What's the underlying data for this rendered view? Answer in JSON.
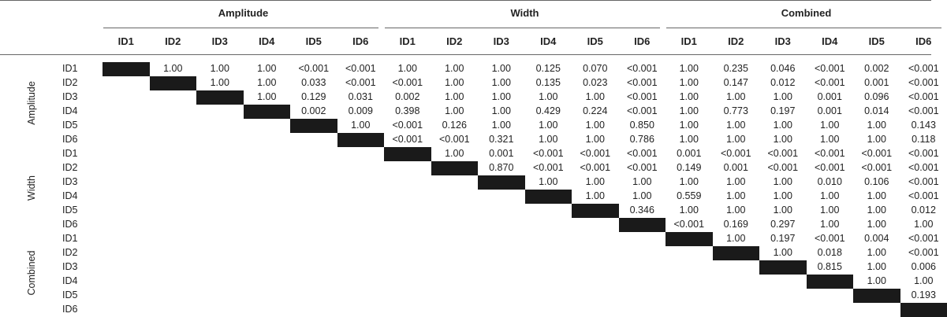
{
  "table": {
    "groups": [
      "Amplitude",
      "Width",
      "Combined"
    ],
    "ids": [
      "ID1",
      "ID2",
      "ID3",
      "ID4",
      "ID5",
      "ID6"
    ],
    "rows": [
      [
        "",
        "1.00",
        "1.00",
        "1.00",
        "<0.001",
        "<0.001",
        "1.00",
        "1.00",
        "1.00",
        "0.125",
        "0.070",
        "<0.001",
        "1.00",
        "0.235",
        "0.046",
        "<0.001",
        "0.002",
        "<0.001"
      ],
      [
        "",
        "",
        "1.00",
        "1.00",
        "0.033",
        "<0.001",
        "<0.001",
        "1.00",
        "1.00",
        "0.135",
        "0.023",
        "<0.001",
        "1.00",
        "0.147",
        "0.012",
        "<0.001",
        "0.001",
        "<0.001"
      ],
      [
        "",
        "",
        "",
        "1.00",
        "0.129",
        "0.031",
        "0.002",
        "1.00",
        "1.00",
        "1.00",
        "1.00",
        "<0.001",
        "1.00",
        "1.00",
        "1.00",
        "0.001",
        "0.096",
        "<0.001"
      ],
      [
        "",
        "",
        "",
        "",
        "0.002",
        "0.009",
        "0.398",
        "1.00",
        "1.00",
        "0.429",
        "0.224",
        "<0.001",
        "1.00",
        "0.773",
        "0.197",
        "0.001",
        "0.014",
        "<0.001"
      ],
      [
        "",
        "",
        "",
        "",
        "",
        "1.00",
        "<0.001",
        "0.126",
        "1.00",
        "1.00",
        "1.00",
        "0.850",
        "1.00",
        "1.00",
        "1.00",
        "1.00",
        "1.00",
        "0.143"
      ],
      [
        "",
        "",
        "",
        "",
        "",
        "",
        "<0.001",
        "<0.001",
        "0.321",
        "1.00",
        "1.00",
        "0.786",
        "1.00",
        "1.00",
        "1.00",
        "1.00",
        "1.00",
        "0.118"
      ],
      [
        "",
        "",
        "",
        "",
        "",
        "",
        "",
        "1.00",
        "0.001",
        "<0.001",
        "<0.001",
        "<0.001",
        "0.001",
        "<0.001",
        "<0.001",
        "<0.001",
        "<0.001",
        "<0.001"
      ],
      [
        "",
        "",
        "",
        "",
        "",
        "",
        "",
        "",
        "0.870",
        "<0.001",
        "<0.001",
        "<0.001",
        "0.149",
        "0.001",
        "<0.001",
        "<0.001",
        "<0.001",
        "<0.001"
      ],
      [
        "",
        "",
        "",
        "",
        "",
        "",
        "",
        "",
        "",
        "1.00",
        "1.00",
        "1.00",
        "1.00",
        "1.00",
        "1.00",
        "0.010",
        "0.106",
        "<0.001"
      ],
      [
        "",
        "",
        "",
        "",
        "",
        "",
        "",
        "",
        "",
        "",
        "1.00",
        "1.00",
        "0.559",
        "1.00",
        "1.00",
        "1.00",
        "1.00",
        "<0.001"
      ],
      [
        "",
        "",
        "",
        "",
        "",
        "",
        "",
        "",
        "",
        "",
        "",
        "0.346",
        "1.00",
        "1.00",
        "1.00",
        "1.00",
        "1.00",
        "0.012"
      ],
      [
        "",
        "",
        "",
        "",
        "",
        "",
        "",
        "",
        "",
        "",
        "",
        "",
        "<0.001",
        "0.169",
        "0.297",
        "1.00",
        "1.00",
        "1.00"
      ],
      [
        "",
        "",
        "",
        "",
        "",
        "",
        "",
        "",
        "",
        "",
        "",
        "",
        "",
        "1.00",
        "0.197",
        "<0.001",
        "0.004",
        "<0.001"
      ],
      [
        "",
        "",
        "",
        "",
        "",
        "",
        "",
        "",
        "",
        "",
        "",
        "",
        "",
        "",
        "1.00",
        "0.018",
        "1.00",
        "<0.001"
      ],
      [
        "",
        "",
        "",
        "",
        "",
        "",
        "",
        "",
        "",
        "",
        "",
        "",
        "",
        "",
        "",
        "0.815",
        "1.00",
        "0.006"
      ],
      [
        "",
        "",
        "",
        "",
        "",
        "",
        "",
        "",
        "",
        "",
        "",
        "",
        "",
        "",
        "",
        "",
        "1.00",
        "1.00"
      ],
      [
        "",
        "",
        "",
        "",
        "",
        "",
        "",
        "",
        "",
        "",
        "",
        "",
        "",
        "",
        "",
        "",
        "",
        "0.193"
      ],
      [
        "",
        "",
        "",
        "",
        "",
        "",
        "",
        "",
        "",
        "",
        "",
        "",
        "",
        "",
        "",
        "",
        "",
        ""
      ]
    ]
  },
  "colors": {
    "diagonal": "#1a1a1a",
    "rule": "#666666",
    "text": "#222222"
  }
}
